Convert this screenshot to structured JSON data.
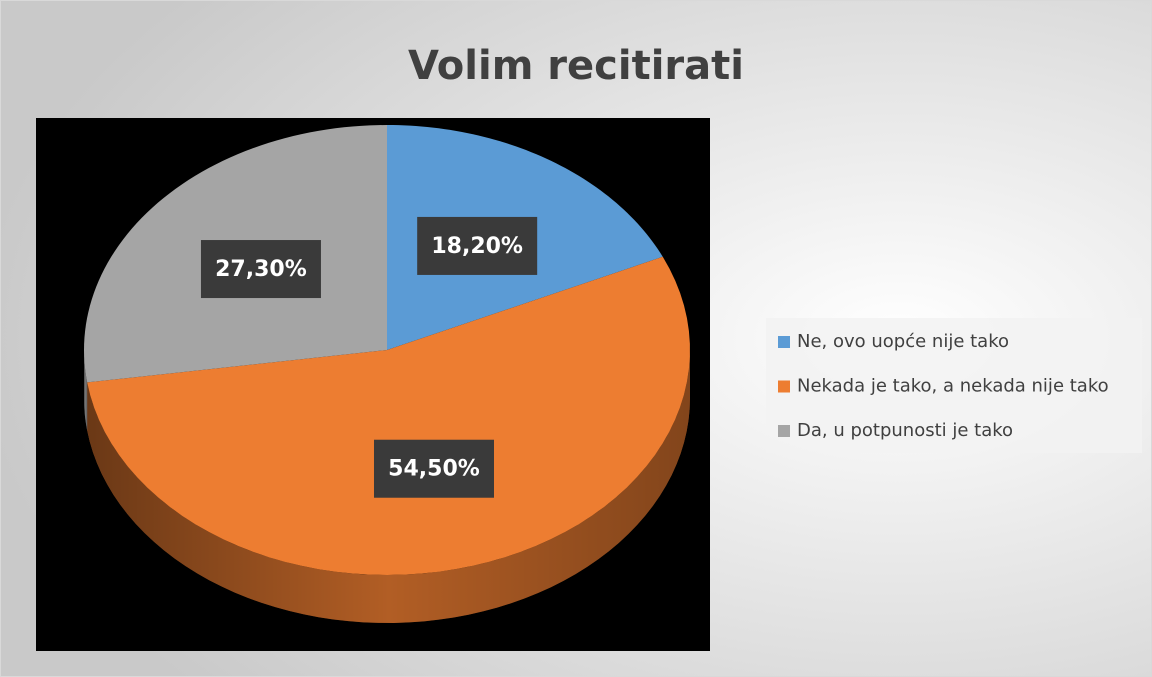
{
  "chart_data": {
    "type": "pie",
    "title": "Volim recitirati",
    "categories": [
      "Ne, ovo uopće nije tako",
      "Nekada je tako, a nekada nije tako",
      "Da, u potpunosti je tako"
    ],
    "values": [
      18.2,
      54.5,
      27.3
    ],
    "value_labels": [
      "18,20%",
      "54,50%",
      "27,30%"
    ],
    "colors": [
      "#5b9bd5",
      "#ed7d31",
      "#a5a5a5"
    ],
    "legend": "right"
  }
}
